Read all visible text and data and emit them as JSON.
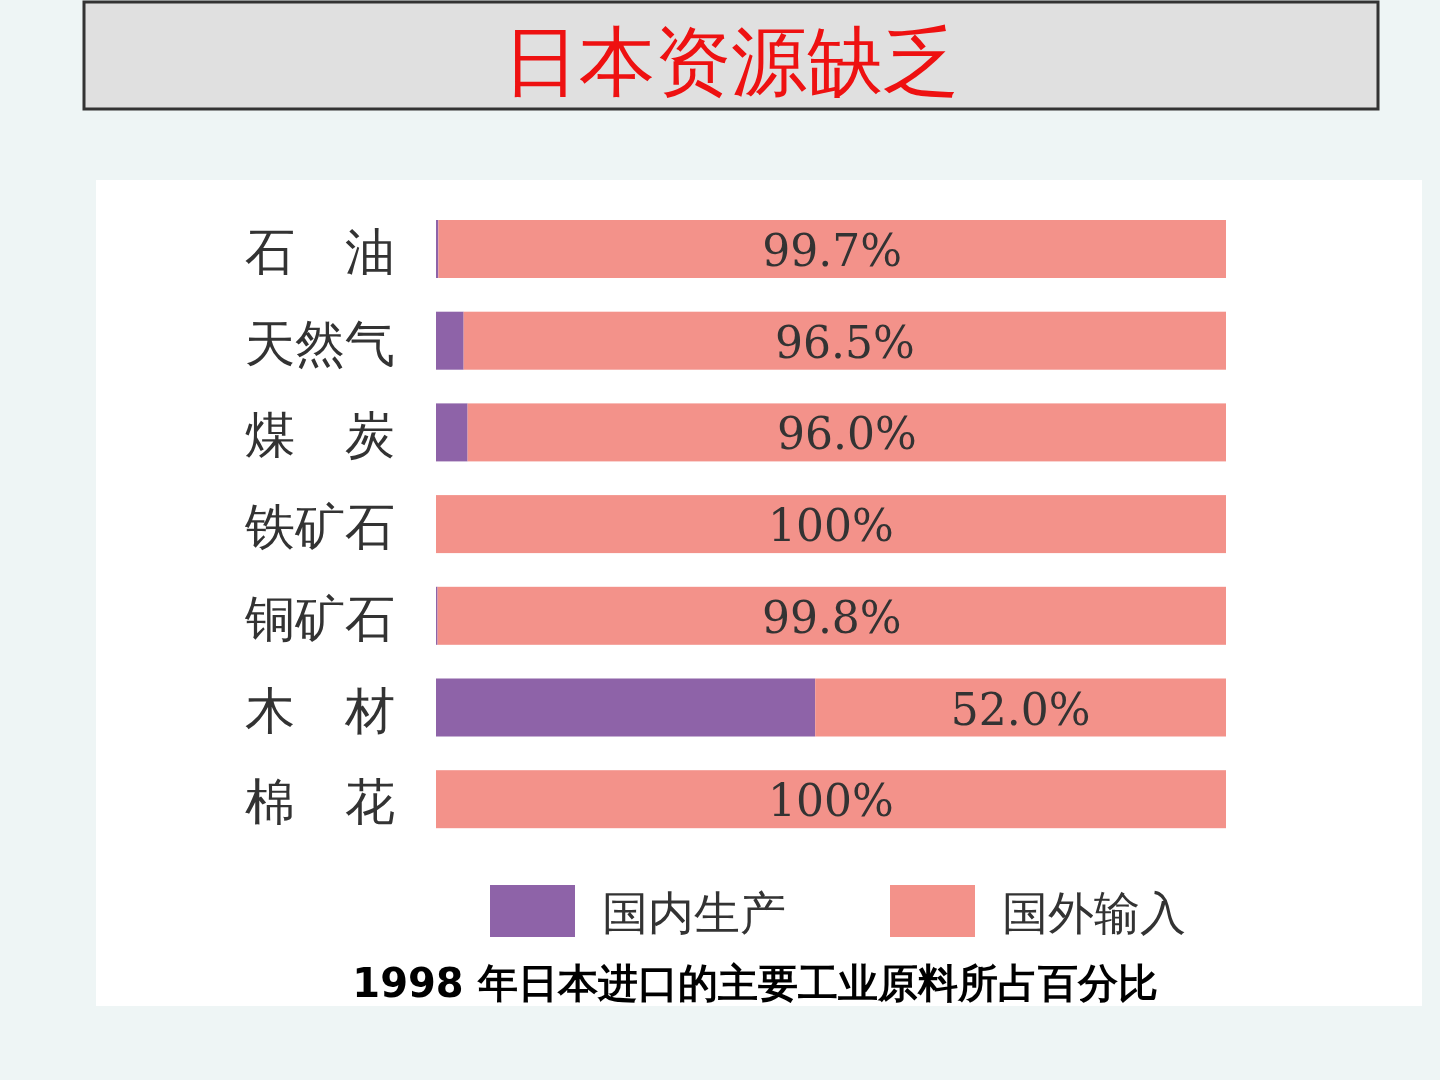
{
  "chart_data": {
    "type": "bar",
    "orientation": "horizontal",
    "stacked": true,
    "title": "日本资源缺乏",
    "categories": [
      "石　油",
      "天然气",
      "煤　炭",
      "铁矿石",
      "铜矿石",
      "木　材",
      "棉　花"
    ],
    "series": [
      {
        "name": "国内生产",
        "color": "#8e63a8",
        "values": [
          0.3,
          3.5,
          4.0,
          0,
          0.2,
          48.0,
          0
        ]
      },
      {
        "name": "国外输入",
        "color": "#f3928a",
        "values": [
          99.7,
          96.5,
          96.0,
          100,
          99.8,
          52.0,
          100
        ],
        "value_labels": [
          "99.7%",
          "96.5%",
          "96.0%",
          "100%",
          "99.8%",
          "52.0%",
          "100%"
        ]
      }
    ],
    "xlim": [
      0,
      100
    ],
    "tick_labels": false,
    "legend": "bottom",
    "annotations": [
      "1998 年日本进口的主要工业原料所占百分比"
    ]
  }
}
